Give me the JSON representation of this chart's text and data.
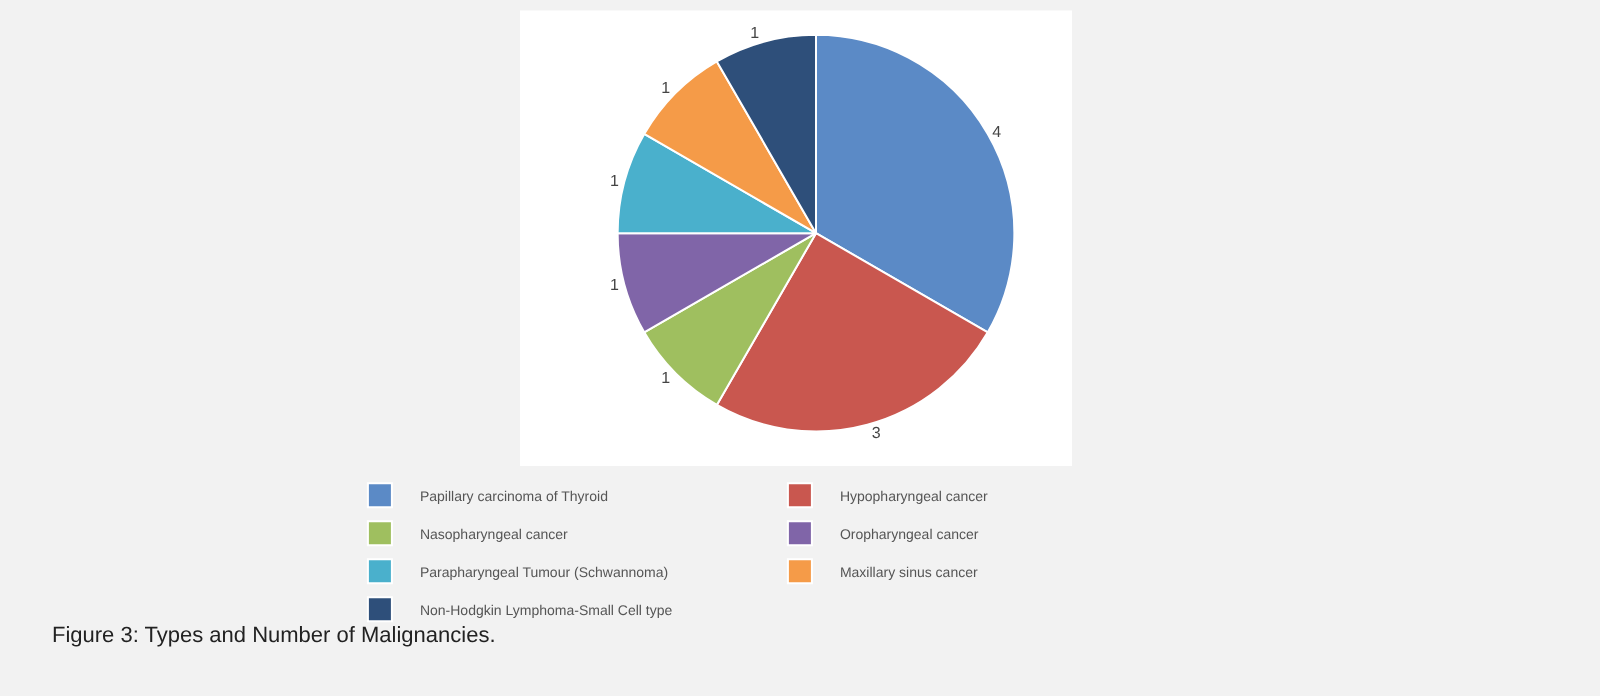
{
  "chart_data": {
    "type": "pie",
    "categories": [
      "Papillary carcinoma of Thyroid",
      "Hypopharyngeal cancer",
      "Nasopharyngeal cancer",
      "Oropharyngeal cancer",
      "Parapharyngeal Tumour (Schwannoma)",
      "Maxillary sinus cancer",
      "Non-Hodgkin Lymphoma-Small Cell type"
    ],
    "values": [
      4,
      3,
      1,
      1,
      1,
      1,
      1
    ],
    "colors": [
      "#5b8ac6",
      "#c9574f",
      "#9fbf5f",
      "#8065a8",
      "#4ab0cc",
      "#f59b48",
      "#2e4f7a"
    ],
    "data_labels": true,
    "legend": "bottom",
    "annotations": [
      "Figure 3: Types and Number of Malignancies."
    ]
  }
}
